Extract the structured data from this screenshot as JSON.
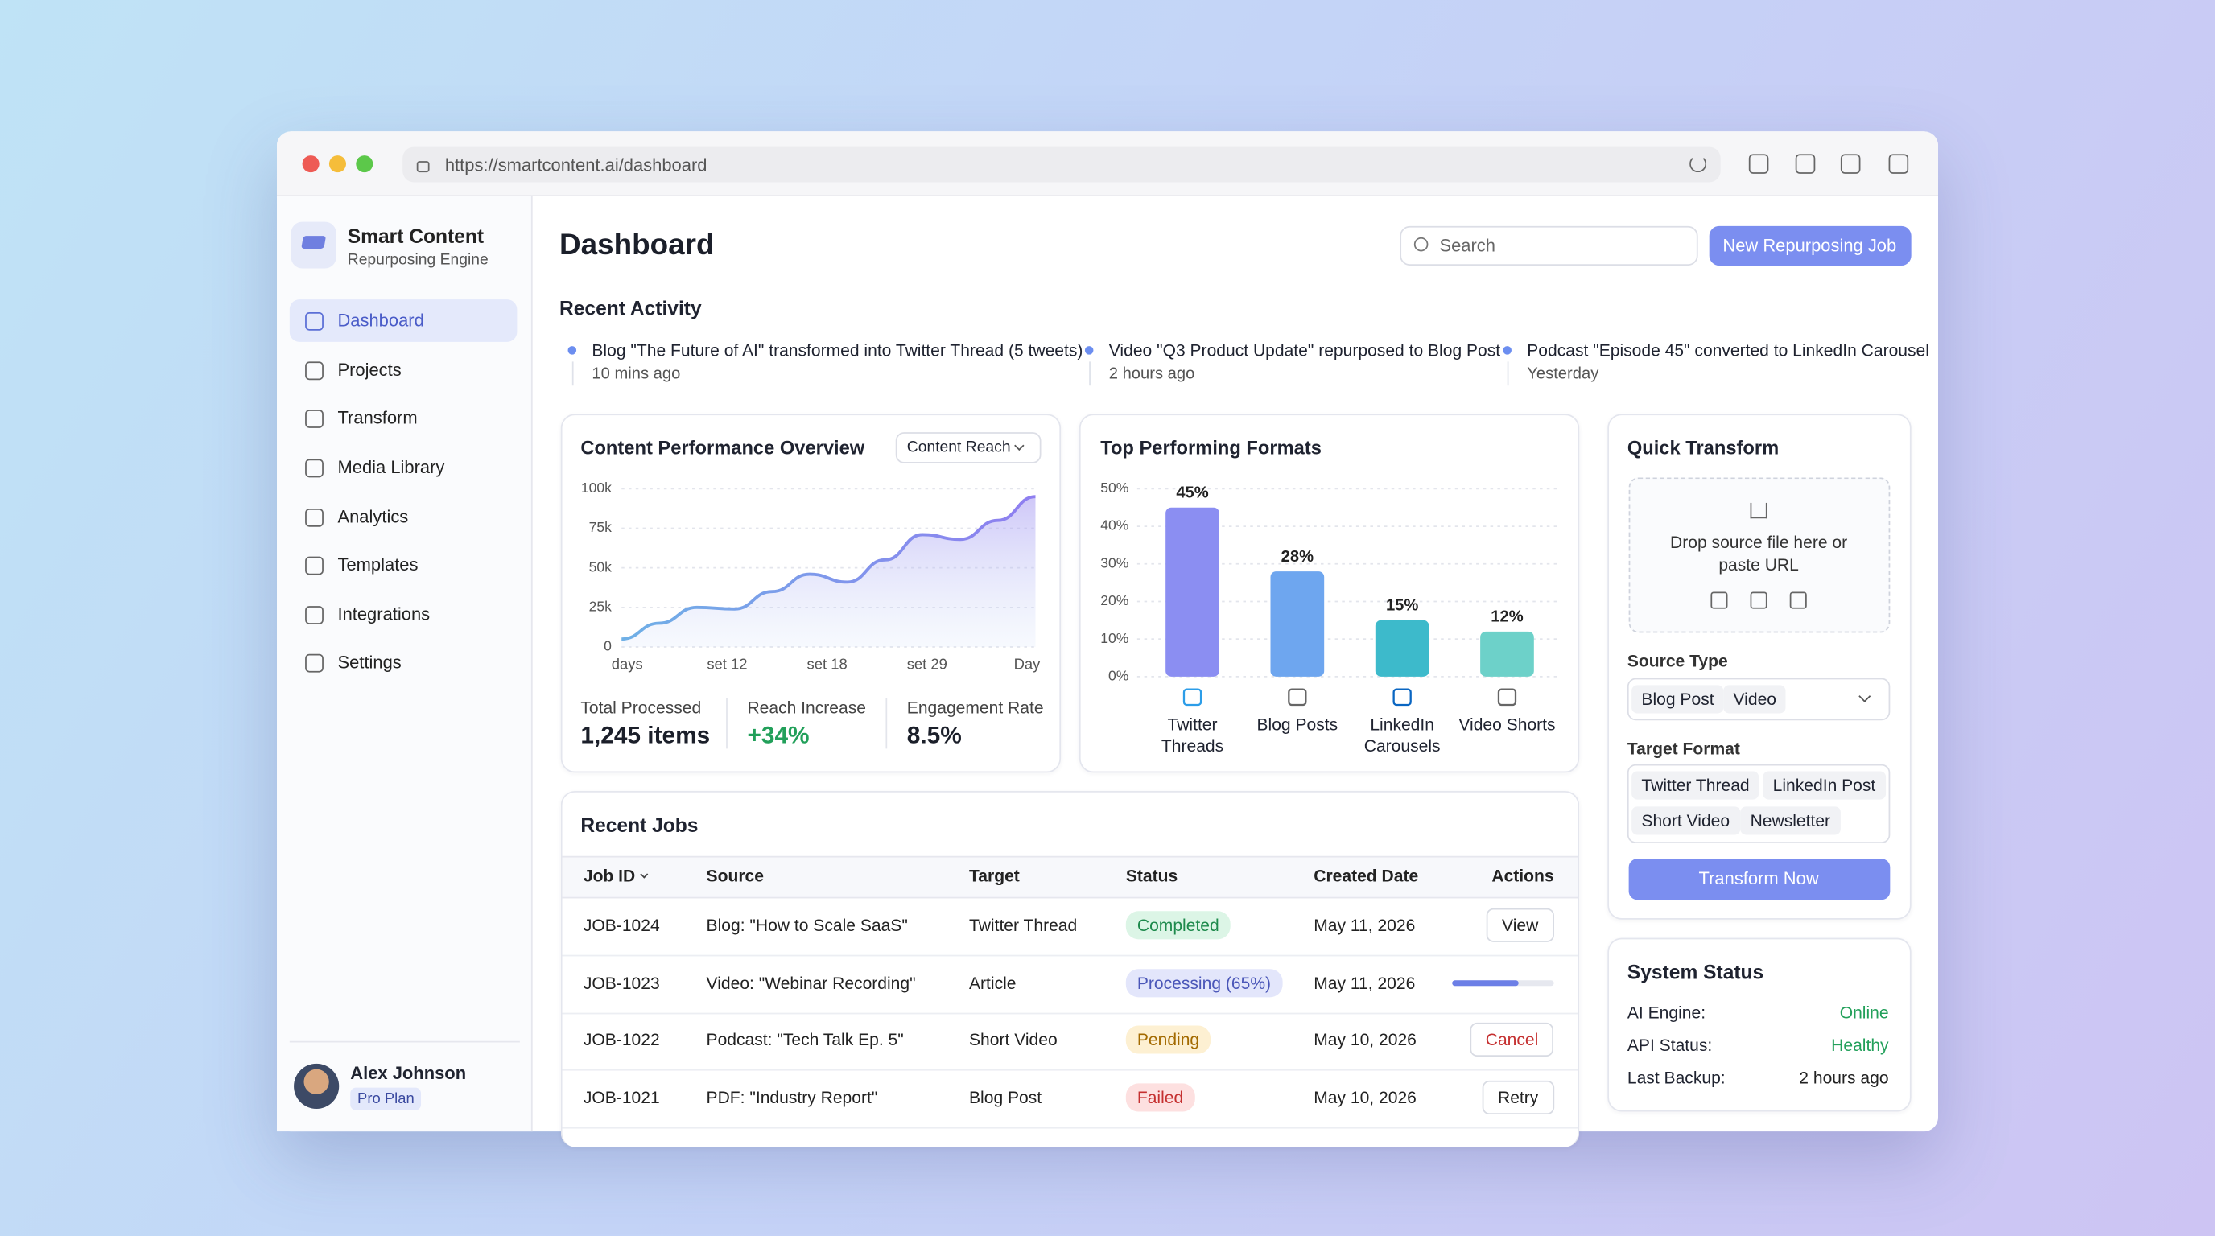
{
  "browser": {
    "url": "https://smartcontent.ai/dashboard"
  },
  "sidebar": {
    "brand": "Smart Content",
    "tagline": "Repurposing Engine",
    "nav": [
      "Dashboard",
      "Projects",
      "Transform",
      "Media Library",
      "Analytics",
      "Templates",
      "Integrations",
      "Settings"
    ],
    "user": {
      "name": "Alex Johnson",
      "plan": "Pro Plan"
    }
  },
  "header": {
    "title": "Dashboard",
    "search_placeholder": "Search",
    "new_job_button": "New Repurposing Job"
  },
  "recent_activity": {
    "title": "Recent Activity",
    "items": [
      {
        "text": "Blog \"The Future of AI\" transformed into Twitter Thread (5 tweets)",
        "time": "10 mins ago"
      },
      {
        "text": "Video \"Q3 Product Update\" repurposed to Blog Post",
        "time": "2 hours ago"
      },
      {
        "text": "Podcast \"Episode 45\" converted to LinkedIn Carousel",
        "time": "Yesterday"
      }
    ]
  },
  "performance": {
    "title": "Content Performance Overview",
    "dropdown": "Content Reach",
    "chart": {
      "type": "area",
      "x_labels": [
        "days",
        "set 12",
        "set 18",
        "set 29",
        "Day"
      ],
      "values": [
        5000,
        15000,
        25000,
        24000,
        35000,
        46000,
        41000,
        55000,
        71000,
        68000,
        80000,
        95000
      ],
      "ylim": [
        0,
        100000
      ],
      "yticks": [
        {
          "value": 0,
          "label": "0"
        },
        {
          "value": 25000,
          "label": "25k"
        },
        {
          "value": 50000,
          "label": "50k"
        },
        {
          "value": 75000,
          "label": "75k"
        },
        {
          "value": 100000,
          "label": "100k"
        }
      ],
      "grid": true
    },
    "stats": [
      {
        "label": "Total Processed",
        "value": "1,245 items"
      },
      {
        "label": "Reach Increase",
        "value": "+34%"
      },
      {
        "label": "Engagement Rate",
        "value": "8.5%"
      }
    ]
  },
  "formats": {
    "title": "Top Performing Formats",
    "chart": {
      "type": "bar",
      "categories": [
        "Twitter Threads",
        "Blog Posts",
        "LinkedIn Carousels",
        "Video Shorts"
      ],
      "values": [
        45,
        28,
        15,
        12
      ],
      "value_labels": [
        "45%",
        "28%",
        "15%",
        "12%"
      ],
      "colors": [
        "#8b8ef2",
        "#6ea6ef",
        "#3dbacb",
        "#6dd1c9"
      ],
      "ylim": [
        0,
        50
      ],
      "yticks": [
        {
          "value": 0,
          "label": "0%"
        },
        {
          "value": 10,
          "label": "10%"
        },
        {
          "value": 20,
          "label": "20%"
        },
        {
          "value": 30,
          "label": "30%"
        },
        {
          "value": 40,
          "label": "40%"
        },
        {
          "value": 50,
          "label": "50%"
        }
      ],
      "grid": true
    }
  },
  "quick_transform": {
    "title": "Quick Transform",
    "drop_text": "Drop source file here or paste URL",
    "source_label": "Source Type",
    "source_chips": [
      "Blog Post",
      "Video"
    ],
    "target_label": "Target Format",
    "target_chips": [
      "Twitter Thread",
      "LinkedIn Post",
      "Short Video",
      "Newsletter"
    ],
    "button": "Transform Now"
  },
  "system_status": {
    "title": "System Status",
    "rows": [
      {
        "label": "AI Engine:",
        "value": "Online"
      },
      {
        "label": "API Status:",
        "value": "Healthy"
      },
      {
        "label": "Last Backup:",
        "value": "2 hours ago"
      }
    ]
  },
  "recent_jobs": {
    "title": "Recent Jobs",
    "columns": [
      "Job ID",
      "Source",
      "Target",
      "Status",
      "Created Date",
      "Actions"
    ],
    "rows": [
      {
        "id": "JOB-1024",
        "source": "Blog: \"How to Scale SaaS\"",
        "target": "Twitter Thread",
        "status": "Completed",
        "date": "May 11, 2026",
        "action": "View"
      },
      {
        "id": "JOB-1023",
        "source": "Video: \"Webinar Recording\"",
        "target": "Article",
        "status": "Processing (65%)",
        "date": "May 11, 2026",
        "progress": 65
      },
      {
        "id": "JOB-1022",
        "source": "Podcast: \"Tech Talk Ep. 5\"",
        "target": "Short Video",
        "status": "Pending",
        "date": "May 10, 2026",
        "action": "Cancel"
      },
      {
        "id": "JOB-1021",
        "source": "PDF: \"Industry Report\"",
        "target": "Blog Post",
        "status": "Failed",
        "date": "May 10, 2026",
        "action": "Retry"
      }
    ]
  }
}
